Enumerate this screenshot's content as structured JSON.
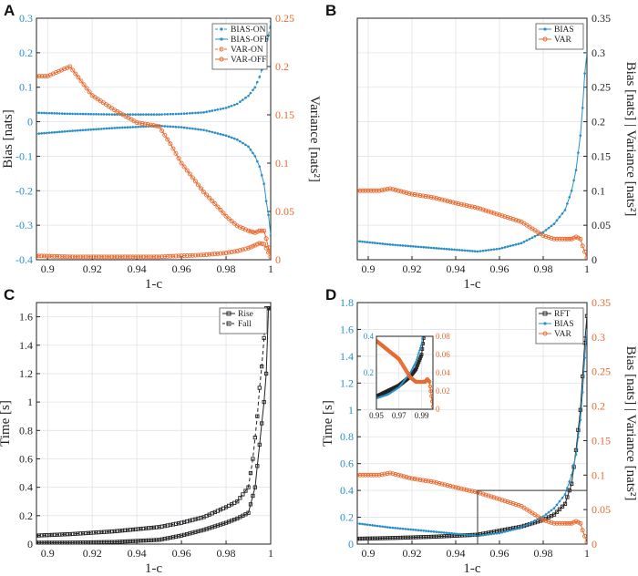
{
  "colors": {
    "blue": "#2a8fc7",
    "orange": "#e96a2f",
    "black": "#222222"
  },
  "chart_data": [
    {
      "id": "A",
      "type": "line",
      "panel_label": "A",
      "xlabel": "1-c",
      "ylabel_left": "Bias [nats]",
      "ylabel_right": "Variance [nats²]",
      "xlim": [
        0.895,
        1.0
      ],
      "ylim_left": [
        -0.4,
        0.3
      ],
      "ylim_right": [
        0.0,
        0.25
      ],
      "xticks": [
        "0.9",
        "0.92",
        "0.94",
        "0.96",
        "0.98",
        "1"
      ],
      "yticks_left": [
        "-0.4",
        "-0.3",
        "-0.2",
        "-0.1",
        "0",
        "0.1",
        "0.2",
        "0.3"
      ],
      "yticks_right": [
        "0",
        "0.05",
        "0.1",
        "0.15",
        "0.2",
        "0.25"
      ],
      "legend": [
        "BIAS-ON",
        "BIAS-OFF",
        "VAR-ON",
        "VAR-OFF"
      ],
      "series": [
        {
          "name": "BIAS-ON",
          "axis": "left",
          "color": "blue",
          "marker": "dot",
          "dash": "4,3",
          "x": [
            0.895,
            0.91,
            0.93,
            0.95,
            0.96,
            0.97,
            0.98,
            0.985,
            0.99,
            0.993,
            0.995,
            0.997,
            0.998,
            0.999,
            1.0
          ],
          "y": [
            0.026,
            0.023,
            0.021,
            0.021,
            0.023,
            0.027,
            0.04,
            0.052,
            0.075,
            0.1,
            0.13,
            0.17,
            0.21,
            0.25,
            0.29
          ]
        },
        {
          "name": "BIAS-OFF",
          "axis": "left",
          "color": "blue",
          "marker": "dot",
          "dash": "",
          "x": [
            0.895,
            0.91,
            0.93,
            0.95,
            0.96,
            0.97,
            0.98,
            0.985,
            0.99,
            0.993,
            0.995,
            0.997,
            0.998,
            0.999,
            1.0
          ],
          "y": [
            -0.035,
            -0.027,
            -0.018,
            -0.012,
            -0.016,
            -0.024,
            -0.04,
            -0.052,
            -0.072,
            -0.1,
            -0.13,
            -0.18,
            -0.23,
            -0.27,
            -0.33
          ]
        },
        {
          "name": "VAR-ON",
          "axis": "right",
          "color": "orange",
          "marker": "ring",
          "dash": "4,3",
          "x": [
            0.895,
            0.91,
            0.93,
            0.95,
            0.96,
            0.97,
            0.98,
            0.985,
            0.99,
            0.993,
            0.995,
            0.997,
            0.998,
            1.0
          ],
          "y": [
            0.004,
            0.003,
            0.003,
            0.003,
            0.004,
            0.005,
            0.007,
            0.009,
            0.012,
            0.015,
            0.017,
            0.016,
            0.012,
            0.003
          ]
        },
        {
          "name": "VAR-OFF",
          "axis": "right",
          "color": "orange",
          "marker": "ring",
          "dash": "",
          "x": [
            0.895,
            0.9,
            0.905,
            0.91,
            0.915,
            0.92,
            0.93,
            0.94,
            0.945,
            0.95,
            0.955,
            0.96,
            0.965,
            0.97,
            0.975,
            0.98,
            0.985,
            0.99,
            0.993,
            0.995,
            0.997,
            0.998,
            1.0
          ],
          "y": [
            0.19,
            0.19,
            0.195,
            0.2,
            0.185,
            0.17,
            0.155,
            0.142,
            0.14,
            0.138,
            0.12,
            0.1,
            0.085,
            0.07,
            0.058,
            0.045,
            0.035,
            0.03,
            0.028,
            0.03,
            0.03,
            0.022,
            0.003
          ]
        }
      ]
    },
    {
      "id": "B",
      "type": "line",
      "panel_label": "B",
      "xlabel": "1-c",
      "ylabel_right": "Bias [nats] | Variance [nats²]",
      "xlim": [
        0.895,
        1.0
      ],
      "ylim_right": [
        0.0,
        0.35
      ],
      "xticks": [
        "0.9",
        "0.92",
        "0.94",
        "0.96",
        "0.98",
        "1"
      ],
      "yticks_right": [
        "0",
        "0.05",
        "0.1",
        "0.15",
        "0.2",
        "0.25",
        "0.3",
        "0.35"
      ],
      "legend": [
        "BIAS",
        "VAR"
      ],
      "series": [
        {
          "name": "BIAS",
          "axis": "right",
          "color": "blue",
          "marker": "dot",
          "dash": "",
          "x": [
            0.895,
            0.91,
            0.93,
            0.95,
            0.96,
            0.97,
            0.98,
            0.985,
            0.99,
            0.993,
            0.995,
            0.997,
            0.998,
            0.999,
            1.0
          ],
          "y": [
            0.027,
            0.022,
            0.017,
            0.012,
            0.016,
            0.024,
            0.04,
            0.052,
            0.072,
            0.1,
            0.13,
            0.18,
            0.22,
            0.27,
            0.3
          ]
        },
        {
          "name": "VAR",
          "axis": "right",
          "color": "orange",
          "marker": "ring",
          "dash": "",
          "x": [
            0.895,
            0.9,
            0.905,
            0.91,
            0.92,
            0.93,
            0.94,
            0.95,
            0.96,
            0.97,
            0.975,
            0.98,
            0.985,
            0.99,
            0.993,
            0.995,
            0.997,
            0.998,
            1.0
          ],
          "y": [
            0.1,
            0.1,
            0.1,
            0.103,
            0.095,
            0.09,
            0.082,
            0.075,
            0.065,
            0.055,
            0.045,
            0.035,
            0.03,
            0.03,
            0.03,
            0.033,
            0.03,
            0.02,
            0.003
          ]
        }
      ]
    },
    {
      "id": "C",
      "type": "line",
      "panel_label": "C",
      "xlabel": "1-c",
      "ylabel_left": "Time [s]",
      "xlim": [
        0.895,
        1.0
      ],
      "ylim_left": [
        0.0,
        1.7
      ],
      "xticks": [
        "0.9",
        "0.92",
        "0.94",
        "0.96",
        "0.98",
        "1"
      ],
      "yticks_left": [
        "0",
        "0.2",
        "0.4",
        "0.6",
        "0.8",
        "1",
        "1.2",
        "1.4",
        "1.6"
      ],
      "legend": [
        "Rise",
        "Fall"
      ],
      "series": [
        {
          "name": "Rise",
          "axis": "left",
          "color": "black",
          "marker": "square",
          "dash": "",
          "x": [
            0.895,
            0.91,
            0.93,
            0.95,
            0.96,
            0.97,
            0.98,
            0.985,
            0.99,
            0.993,
            0.995,
            0.997,
            0.998,
            0.999,
            1.0
          ],
          "y": [
            0.01,
            0.01,
            0.015,
            0.03,
            0.06,
            0.1,
            0.15,
            0.18,
            0.22,
            0.4,
            0.7,
            1.0,
            1.2,
            1.66,
            1.66
          ]
        },
        {
          "name": "Fall",
          "axis": "left",
          "color": "black",
          "marker": "square",
          "dash": "4,3",
          "x": [
            0.895,
            0.91,
            0.93,
            0.95,
            0.96,
            0.97,
            0.98,
            0.985,
            0.99,
            0.992,
            0.994,
            0.995,
            0.996,
            0.997,
            0.998,
            1.0
          ],
          "y": [
            0.06,
            0.07,
            0.09,
            0.12,
            0.15,
            0.19,
            0.26,
            0.3,
            0.4,
            0.6,
            0.9,
            1.1,
            1.25,
            1.45,
            1.66,
            1.66
          ]
        }
      ]
    },
    {
      "id": "D",
      "type": "line",
      "panel_label": "D",
      "xlabel": "1-c",
      "ylabel_left": "Time [s]",
      "ylabel_right": "Bias [nats] | Variance [nats²]",
      "xlim": [
        0.895,
        1.0
      ],
      "ylim_left": [
        0.0,
        1.8
      ],
      "ylim_right": [
        0.0,
        0.35
      ],
      "xticks": [
        "0.9",
        "0.92",
        "0.94",
        "0.96",
        "0.98",
        "1"
      ],
      "yticks_left": [
        "0",
        "0.2",
        "0.4",
        "0.6",
        "0.8",
        "1",
        "1.2",
        "1.4",
        "1.6",
        "1.8"
      ],
      "yticks_right": [
        "0",
        "0.05",
        "0.1",
        "0.15",
        "0.2",
        "0.25",
        "0.3",
        "0.35"
      ],
      "legend": [
        "RFT",
        "BIAS",
        "VAR"
      ],
      "zoom_box": {
        "x": [
          0.95,
          1.0
        ],
        "y_left": [
          0.0,
          0.4
        ]
      },
      "inset": {
        "xlim": [
          0.95,
          1.0
        ],
        "ylim_left": [
          0.0,
          0.4
        ],
        "ylim_right": [
          0.0,
          0.08
        ],
        "xticks": [
          "0.95",
          "0.97",
          "0.99"
        ],
        "yticks_left": [
          "0.2",
          "0.4"
        ],
        "yticks_right": [
          "0",
          "0.02",
          "0.04",
          "0.06",
          "0.08"
        ]
      },
      "series": [
        {
          "name": "RFT",
          "axis": "left",
          "color": "black",
          "marker": "square",
          "dash": "",
          "x": [
            0.895,
            0.91,
            0.93,
            0.95,
            0.96,
            0.97,
            0.98,
            0.985,
            0.99,
            0.993,
            0.995,
            0.997,
            0.998,
            0.999,
            1.0
          ],
          "y": [
            0.04,
            0.045,
            0.055,
            0.07,
            0.1,
            0.13,
            0.18,
            0.22,
            0.3,
            0.45,
            0.7,
            1.0,
            1.25,
            1.5,
            1.7
          ]
        },
        {
          "name": "BIAS",
          "axis": "right",
          "color": "blue",
          "marker": "dot",
          "dash": "",
          "x": [
            0.895,
            0.91,
            0.93,
            0.95,
            0.96,
            0.97,
            0.98,
            0.985,
            0.99,
            0.993,
            0.995,
            0.997,
            0.998,
            0.999,
            1.0
          ],
          "y": [
            0.03,
            0.024,
            0.018,
            0.012,
            0.016,
            0.024,
            0.04,
            0.052,
            0.072,
            0.1,
            0.13,
            0.18,
            0.22,
            0.27,
            0.31
          ]
        },
        {
          "name": "VAR",
          "axis": "right",
          "color": "orange",
          "marker": "ring",
          "dash": "",
          "x": [
            0.895,
            0.9,
            0.905,
            0.91,
            0.92,
            0.93,
            0.94,
            0.95,
            0.96,
            0.97,
            0.975,
            0.98,
            0.985,
            0.99,
            0.993,
            0.995,
            0.997,
            0.998,
            1.0
          ],
          "y": [
            0.1,
            0.1,
            0.1,
            0.103,
            0.095,
            0.09,
            0.082,
            0.075,
            0.065,
            0.055,
            0.045,
            0.035,
            0.03,
            0.03,
            0.03,
            0.033,
            0.03,
            0.02,
            0.003
          ]
        }
      ]
    }
  ]
}
